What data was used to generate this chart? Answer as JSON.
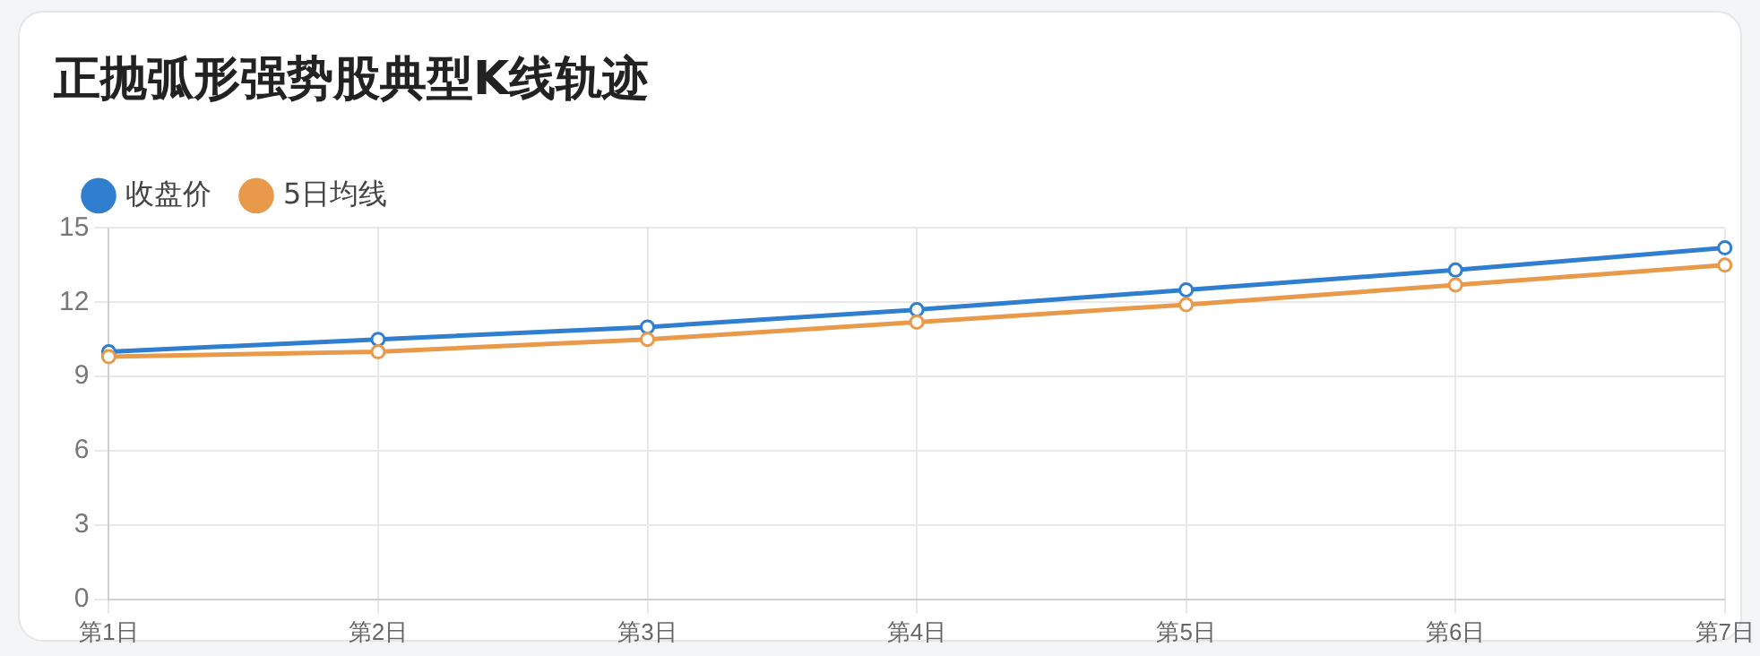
{
  "chart_data": {
    "type": "line",
    "title": "正抛弧形强势股典型K线轨迹",
    "categories": [
      "第1日",
      "第2日",
      "第3日",
      "第4日",
      "第5日",
      "第6日",
      "第7日"
    ],
    "series": [
      {
        "name": "收盘价",
        "color": "#2f7ed0",
        "values": [
          10.0,
          10.5,
          11.0,
          11.7,
          12.5,
          13.3,
          14.2
        ]
      },
      {
        "name": "5日均线",
        "color": "#e8994a",
        "values": [
          9.8,
          10.0,
          10.5,
          11.2,
          11.9,
          12.7,
          13.5
        ]
      }
    ],
    "ylim": [
      0,
      15
    ],
    "yticks": [
      0,
      3,
      6,
      9,
      12,
      15
    ],
    "grid": true,
    "legend": "top left",
    "marker": "circle",
    "line_style": "solid"
  }
}
